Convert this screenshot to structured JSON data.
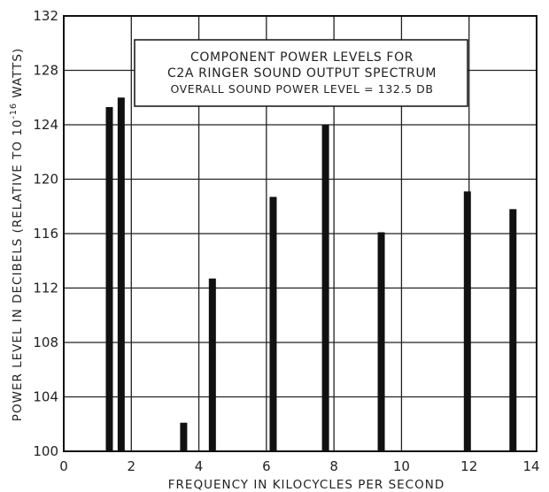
{
  "chart_data": {
    "type": "bar",
    "annotation": {
      "line1": "COMPONENT POWER LEVELS FOR",
      "line2": "C2A RINGER SOUND OUTPUT SPECTRUM",
      "line3": "OVERALL SOUND POWER LEVEL = 132.5 DB"
    },
    "xlabel": "FREQUENCY IN KILOCYCLES PER SECOND",
    "ylabel": "POWER LEVEL IN DECIBELS (RELATIVE TO 10",
    "ylabel_exponent": "-16",
    "ylabel_suffix": " WATTS)",
    "xlim": [
      0,
      14
    ],
    "ylim": [
      100,
      132
    ],
    "x_ticks": [
      "0",
      "2",
      "4",
      "6",
      "8",
      "10",
      "12",
      "14"
    ],
    "y_ticks": [
      "100",
      "104",
      "108",
      "112",
      "116",
      "120",
      "124",
      "128",
      "132"
    ],
    "grid": true,
    "bar_color": "#111111",
    "points": [
      {
        "x": 1.35,
        "y": 125.3
      },
      {
        "x": 1.7,
        "y": 126.0
      },
      {
        "x": 3.55,
        "y": 102.1
      },
      {
        "x": 4.4,
        "y": 112.7
      },
      {
        "x": 6.2,
        "y": 118.7
      },
      {
        "x": 7.75,
        "y": 124.0
      },
      {
        "x": 9.4,
        "y": 116.1
      },
      {
        "x": 11.95,
        "y": 119.1
      },
      {
        "x": 13.3,
        "y": 117.8
      }
    ]
  }
}
